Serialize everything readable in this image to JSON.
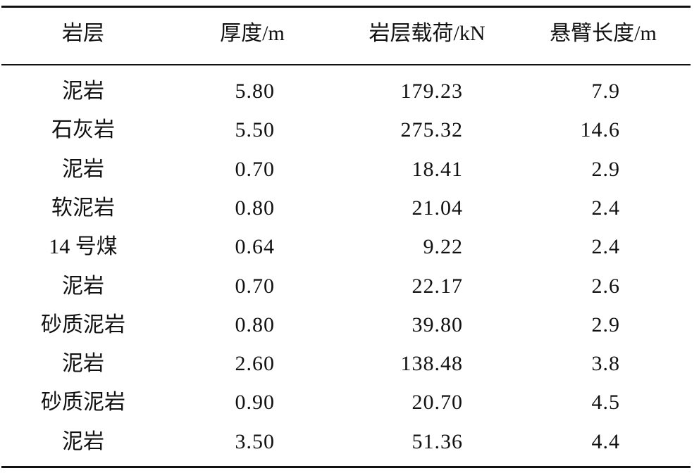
{
  "table": {
    "header": [
      "岩层",
      "厚度/m",
      "岩层载荷/kN",
      "悬臂长度/m"
    ],
    "rows": [
      [
        "泥岩",
        "5.80",
        "179.23",
        "7.9"
      ],
      [
        "石灰岩",
        "5.50",
        "275.32",
        "14.6"
      ],
      [
        "泥岩",
        "0.70",
        "18.41",
        "2.9"
      ],
      [
        "软泥岩",
        "0.80",
        "21.04",
        "2.4"
      ],
      [
        "14 号煤",
        "0.64",
        "9.22",
        "2.4"
      ],
      [
        "泥岩",
        "0.70",
        "22.17",
        "2.6"
      ],
      [
        "砂质泥岩",
        "0.80",
        "39.80",
        "2.9"
      ],
      [
        "泥岩",
        "2.60",
        "138.48",
        "3.8"
      ],
      [
        "砂质泥岩",
        "0.90",
        "20.70",
        "4.5"
      ],
      [
        "泥岩",
        "3.50",
        "51.36",
        "4.4"
      ]
    ]
  }
}
